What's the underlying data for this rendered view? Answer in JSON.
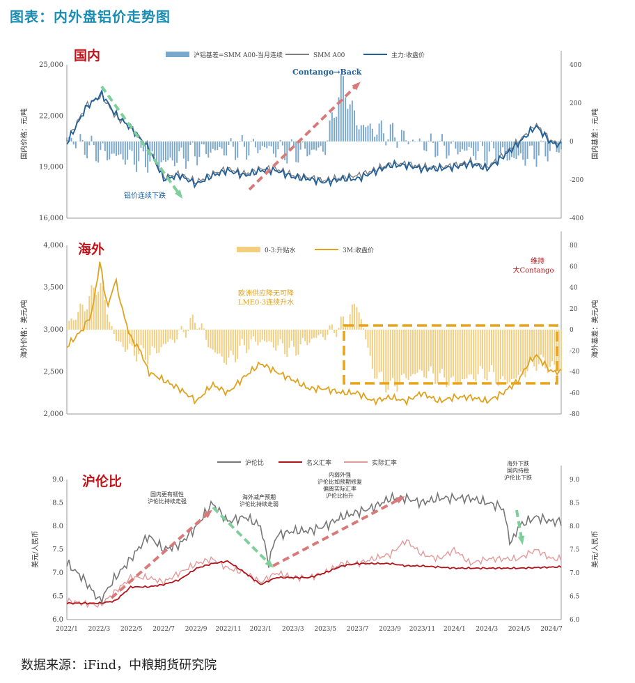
{
  "title": "图表：内外盘铝价走势图",
  "source": "数据来源：iFind，中粮期货研究院",
  "colors": {
    "title": "#1a8db3",
    "domestic_basis": "#7aa8cc",
    "smm_a00": "#7f7f7f",
    "main_close": "#1f5f9a",
    "overseas_spread": "#f2ce7e",
    "lme_3m": "#e0a21e",
    "ratio": "#777777",
    "nominal_fx": "#b0141a",
    "real_fx": "#e39a9a",
    "arrow_green": "#7fcf9a",
    "arrow_red": "#d97a7a",
    "box_orange": "#e8a317",
    "panel_label": "#c0141a"
  },
  "chart_data": [
    {
      "panel_label": "国内",
      "type": "line",
      "x_start": "2022/1",
      "x_end": "2024/7",
      "ylabel_left": "国内价格：元/吨",
      "ylabel_right": "国内基差：元/吨",
      "ylim_left": [
        16000,
        25000
      ],
      "yticks_left": [
        "16,000",
        "19,000",
        "22,000",
        "25,000"
      ],
      "ylim_right": [
        -400,
        400
      ],
      "yticks_right": [
        "-400",
        "-200",
        "0",
        "200",
        "400"
      ],
      "legend": [
        "沪铝基差=SMM A00-当月连续",
        "SMM A00",
        "主力:收盘价"
      ],
      "annotations": [
        "Contango→Back",
        "铝价连续下跌"
      ],
      "series": [
        {
          "name": "沪铝基差=SMM A00-当月连续",
          "type": "bar",
          "axis": "right",
          "x": [
            2022.0,
            2022.17,
            2022.33,
            2022.5,
            2022.67,
            2022.83,
            2023.0,
            2023.17,
            2023.33,
            2023.42,
            2023.5,
            2023.67,
            2023.83,
            2024.0,
            2024.17,
            2024.33,
            2024.5
          ],
          "values": [
            20,
            -60,
            -90,
            -110,
            -60,
            -40,
            -30,
            -60,
            -40,
            310,
            90,
            40,
            -10,
            -40,
            -60,
            -90,
            -40
          ]
        },
        {
          "name": "SMM A00",
          "type": "line",
          "axis": "left",
          "x": [
            2022.0,
            2022.1,
            2022.18,
            2022.25,
            2022.33,
            2022.42,
            2022.5,
            2022.58,
            2022.67,
            2022.75,
            2022.83,
            2022.92,
            2023.0,
            2023.08,
            2023.17,
            2023.25,
            2023.33,
            2023.42,
            2023.5,
            2023.58,
            2023.67,
            2023.75,
            2023.83,
            2023.92,
            2024.0,
            2024.08,
            2024.17,
            2024.25,
            2024.33,
            2024.42,
            2024.5,
            2024.55
          ],
          "values": [
            20500,
            22600,
            23200,
            22000,
            21300,
            20200,
            18400,
            18600,
            18100,
            18600,
            18900,
            18600,
            18900,
            18900,
            18500,
            18400,
            18200,
            18400,
            18500,
            18800,
            19200,
            19200,
            19000,
            19000,
            19100,
            19300,
            19000,
            19700,
            20500,
            21500,
            20500,
            20400
          ]
        },
        {
          "name": "主力:收盘价",
          "type": "line",
          "axis": "left",
          "x": [
            2022.0,
            2022.1,
            2022.18,
            2022.25,
            2022.33,
            2022.42,
            2022.5,
            2022.58,
            2022.67,
            2022.75,
            2022.83,
            2022.92,
            2023.0,
            2023.08,
            2023.17,
            2023.25,
            2023.33,
            2023.42,
            2023.5,
            2023.58,
            2023.67,
            2023.75,
            2023.83,
            2023.92,
            2024.0,
            2024.08,
            2024.17,
            2024.25,
            2024.33,
            2024.42,
            2024.5,
            2024.55
          ],
          "values": [
            20400,
            22500,
            23300,
            22100,
            21300,
            20100,
            18300,
            18500,
            18000,
            18500,
            18800,
            18500,
            18800,
            18800,
            18400,
            18300,
            18100,
            18300,
            18300,
            18700,
            19100,
            19100,
            18900,
            18900,
            19000,
            19200,
            18900,
            19600,
            20400,
            21400,
            20400,
            20300
          ]
        }
      ]
    },
    {
      "panel_label": "海外",
      "type": "line",
      "x_start": "2022/1",
      "x_end": "2024/7",
      "ylabel_left": "海外价格：美元/吨",
      "ylabel_right": "海外基差：美元/吨",
      "ylim_left": [
        2000,
        4000
      ],
      "yticks_left": [
        "2,000",
        "2,500",
        "3,000",
        "3,500",
        "4,000"
      ],
      "ylim_right": [
        -80,
        80
      ],
      "yticks_right": [
        "-80",
        "-60",
        "-40",
        "-20",
        "0",
        "20",
        "40",
        "60",
        "80"
      ],
      "legend": [
        "0-3:升贴水",
        "3M:收盘价"
      ],
      "annotations": [
        "维持",
        "大Contango",
        "欧洲供应降无可降",
        "LME0-3连续升水"
      ],
      "series": [
        {
          "name": "0-3:升贴水",
          "type": "bar",
          "axis": "right",
          "x": [
            2022.0,
            2022.08,
            2022.17,
            2022.25,
            2022.33,
            2022.42,
            2022.5,
            2022.58,
            2022.67,
            2022.75,
            2022.83,
            2022.92,
            2023.0,
            2023.08,
            2023.17,
            2023.25,
            2023.33,
            2023.42,
            2023.5,
            2023.58,
            2023.67,
            2023.75,
            2023.83,
            2023.92,
            2024.0,
            2024.08,
            2024.17,
            2024.25,
            2024.33,
            2024.42,
            2024.5,
            2024.55
          ],
          "values": [
            5,
            20,
            45,
            -10,
            -20,
            -25,
            -15,
            -5,
            10,
            -20,
            -30,
            -15,
            -10,
            -15,
            -20,
            -10,
            -5,
            5,
            25,
            -40,
            -55,
            -45,
            -40,
            -45,
            -50,
            -45,
            -40,
            -50,
            -45,
            -30,
            -35,
            -40
          ]
        },
        {
          "name": "3M:收盘价",
          "type": "line",
          "axis": "left",
          "x": [
            2022.0,
            2022.08,
            2022.13,
            2022.17,
            2022.21,
            2022.25,
            2022.29,
            2022.33,
            2022.38,
            2022.42,
            2022.5,
            2022.58,
            2022.67,
            2022.75,
            2022.83,
            2022.92,
            2023.0,
            2023.08,
            2023.17,
            2023.25,
            2023.33,
            2023.42,
            2023.5,
            2023.58,
            2023.67,
            2023.75,
            2023.83,
            2023.92,
            2024.0,
            2024.08,
            2024.17,
            2024.25,
            2024.33,
            2024.38,
            2024.42,
            2024.5,
            2024.55
          ],
          "values": [
            2800,
            3000,
            3200,
            3800,
            3250,
            3600,
            3200,
            2900,
            2750,
            2500,
            2400,
            2300,
            2150,
            2350,
            2250,
            2450,
            2600,
            2500,
            2400,
            2300,
            2300,
            2250,
            2250,
            2150,
            2200,
            2150,
            2250,
            2150,
            2200,
            2200,
            2150,
            2250,
            2400,
            2600,
            2700,
            2500,
            2500
          ]
        }
      ]
    },
    {
      "panel_label": "沪伦比",
      "type": "line",
      "x_labels": [
        "2022/1",
        "2022/3",
        "2022/5",
        "2022/7",
        "2022/9",
        "2022/11",
        "2023/1",
        "2023/3",
        "2023/5",
        "2023/7",
        "2023/9",
        "2023/11",
        "2024/1",
        "2024/3",
        "2024/5",
        "2024/7"
      ],
      "ylabel_left": "美元/人民币",
      "ylabel_right": "美元/人民币",
      "ylim": [
        6.0,
        9.0
      ],
      "yticks": [
        "6.0",
        "6.5",
        "7.0",
        "7.5",
        "8.0",
        "8.5",
        "9.0"
      ],
      "legend": [
        "沪伦比",
        "名义汇率",
        "实际汇率"
      ],
      "annotations": [
        "国内更有韧性",
        "沪伦比持续走强",
        "海外减产预期",
        "沪伦比持续走弱",
        "内弱外强",
        "沪伦比如预期修复",
        "偏离实际汇率",
        "沪伦比抬升",
        "海外下跌",
        "国内持稳",
        "沪伦比下跌"
      ],
      "series": [
        {
          "name": "沪伦比",
          "type": "line",
          "x": [
            2022.0,
            2022.08,
            2022.17,
            2022.25,
            2022.33,
            2022.42,
            2022.5,
            2022.58,
            2022.67,
            2022.75,
            2022.83,
            2022.92,
            2023.0,
            2023.04,
            2023.08,
            2023.17,
            2023.25,
            2023.33,
            2023.42,
            2023.5,
            2023.58,
            2023.67,
            2023.75,
            2023.83,
            2023.92,
            2024.0,
            2024.08,
            2024.17,
            2024.25,
            2024.29,
            2024.33,
            2024.42,
            2024.5,
            2024.55
          ],
          "values": [
            7.2,
            6.9,
            6.4,
            6.9,
            7.3,
            7.8,
            7.5,
            7.6,
            8.0,
            8.5,
            8.1,
            8.2,
            8.0,
            7.2,
            7.8,
            7.9,
            7.9,
            8.0,
            8.2,
            8.3,
            8.4,
            8.6,
            8.6,
            8.5,
            8.6,
            8.6,
            8.6,
            8.5,
            8.4,
            7.6,
            8.0,
            8.2,
            8.1,
            8.1
          ]
        },
        {
          "name": "名义汇率",
          "type": "line",
          "x": [
            2022.0,
            2022.17,
            2022.25,
            2022.33,
            2022.42,
            2022.5,
            2022.58,
            2022.67,
            2022.75,
            2022.83,
            2022.92,
            2023.0,
            2023.08,
            2023.17,
            2023.25,
            2023.33,
            2023.42,
            2023.5,
            2023.58,
            2023.67,
            2023.75,
            2023.83,
            2024.0,
            2024.17,
            2024.33,
            2024.55
          ],
          "values": [
            6.35,
            6.35,
            6.4,
            6.7,
            6.7,
            6.75,
            6.85,
            7.1,
            7.2,
            7.25,
            7.0,
            6.75,
            6.9,
            6.9,
            6.9,
            7.0,
            7.15,
            7.2,
            7.2,
            7.2,
            7.15,
            7.15,
            7.1,
            7.1,
            7.1,
            7.13
          ]
        },
        {
          "name": "实际汇率",
          "type": "line",
          "x": [
            2022.0,
            2022.17,
            2022.25,
            2022.33,
            2022.42,
            2022.5,
            2022.58,
            2022.67,
            2022.75,
            2022.83,
            2022.92,
            2023.0,
            2023.08,
            2023.17,
            2023.25,
            2023.33,
            2023.42,
            2023.5,
            2023.58,
            2023.67,
            2023.75,
            2023.83,
            2023.92,
            2024.0,
            2024.08,
            2024.17,
            2024.25,
            2024.33,
            2024.42,
            2024.5,
            2024.55
          ],
          "values": [
            6.4,
            6.3,
            6.6,
            6.9,
            6.9,
            6.8,
            7.0,
            7.2,
            7.3,
            7.1,
            7.0,
            6.8,
            7.0,
            6.9,
            6.9,
            7.0,
            7.2,
            7.2,
            7.3,
            7.4,
            7.7,
            7.4,
            7.3,
            7.5,
            7.2,
            7.3,
            7.3,
            7.3,
            7.5,
            7.3,
            7.3
          ]
        }
      ]
    }
  ]
}
